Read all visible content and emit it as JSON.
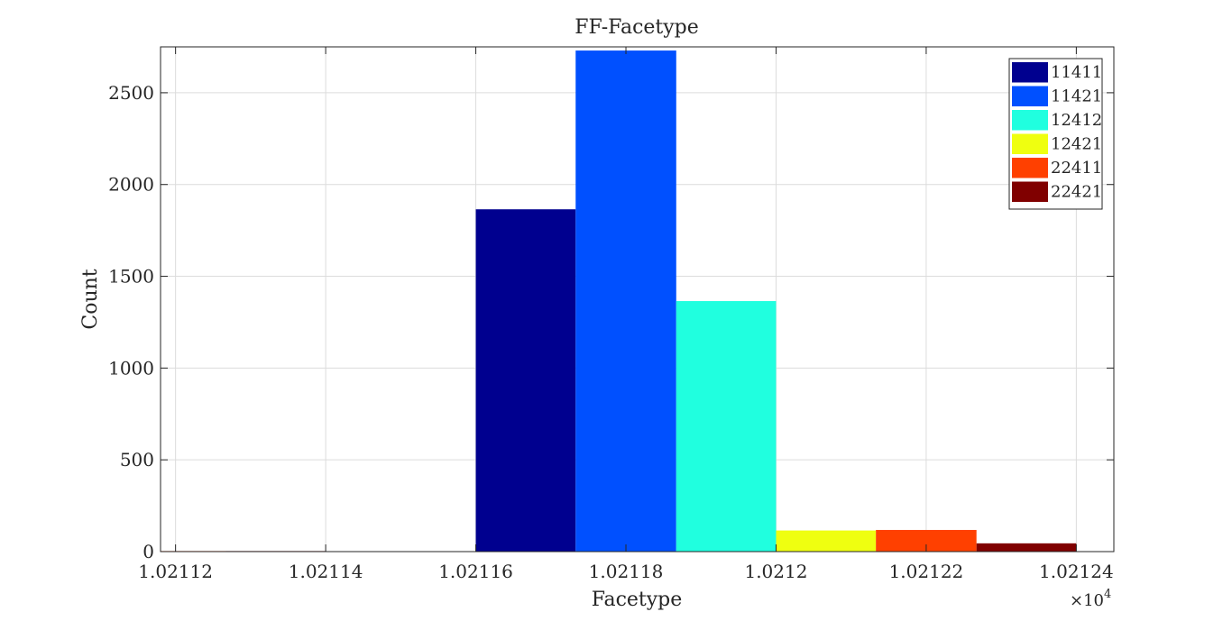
{
  "chart_data": {
    "type": "bar",
    "title": "FF-Facetype",
    "xlabel": "Facetype",
    "ylabel": "Count",
    "x_exponent_label": "×10",
    "x_exponent_power": "4",
    "xlim": [
      10211.18,
      10212.45
    ],
    "ylim": [
      0,
      2750
    ],
    "x_ticks": [
      10211.2,
      10211.4,
      10211.6,
      10211.8,
      10212.0,
      10212.2,
      10212.4
    ],
    "x_tick_labels": [
      "1.02112",
      "1.02114",
      "1.02116",
      "1.02118",
      "1.0212",
      "1.02122",
      "1.02124"
    ],
    "y_ticks": [
      0,
      500,
      1000,
      1500,
      2000,
      2500
    ],
    "y_tick_labels": [
      "0",
      "500",
      "1000",
      "1500",
      "2000",
      "2500"
    ],
    "grid": true,
    "legend_position": "top-right",
    "series": [
      {
        "name": "11411",
        "color": "#00008f",
        "x_start": 10211.6,
        "x_end": 10211.733,
        "value": 1865
      },
      {
        "name": "11421",
        "color": "#0050ff",
        "x_start": 10211.733,
        "x_end": 10211.867,
        "value": 2730
      },
      {
        "name": "12412",
        "color": "#20ffdf",
        "x_start": 10211.867,
        "x_end": 10212.0,
        "value": 1365
      },
      {
        "name": "12421",
        "color": "#efff10",
        "x_start": 10212.0,
        "x_end": 10212.133,
        "value": 115
      },
      {
        "name": "22411",
        "color": "#ff4000",
        "x_start": 10212.133,
        "x_end": 10212.267,
        "value": 118
      },
      {
        "name": "22421",
        "color": "#800000",
        "x_start": 10212.267,
        "x_end": 10212.4,
        "value": 45
      }
    ],
    "near_zero_bars": [
      {
        "color": "#ff4000",
        "x_start": 10211.18,
        "x_end": 10211.267,
        "value": 3
      },
      {
        "color": "#800000",
        "x_start": 10211.267,
        "x_end": 10211.4,
        "value": 3
      }
    ]
  }
}
